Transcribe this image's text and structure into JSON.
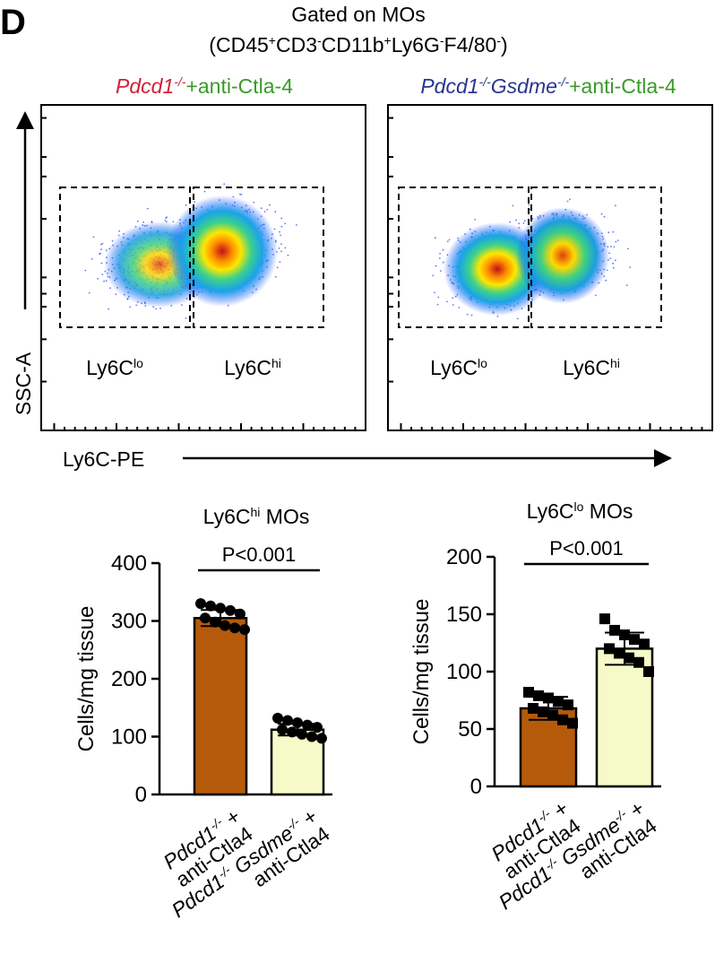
{
  "panel_letter": "D",
  "gating": {
    "title": "Gated on MOs",
    "markers": [
      {
        "name": "CD45",
        "sign": "+"
      },
      {
        "name": "CD3",
        "sign": "-"
      },
      {
        "name": "CD11b",
        "sign": "+"
      },
      {
        "name": "Ly6G",
        "sign": "-"
      },
      {
        "name": "F4/80",
        "sign": "-"
      }
    ]
  },
  "flow_panels": [
    {
      "header": [
        {
          "text": "Pdcd1",
          "italic": true,
          "color": "#d0203a"
        },
        {
          "text": "-/-",
          "sup": true,
          "italic": true,
          "color": "#d0203a"
        },
        {
          "text": "+anti-Ctla-4",
          "italic": false,
          "color": "#3a9a2a"
        }
      ],
      "gate_left": "Ly6C",
      "gate_left_sup": "lo",
      "gate_right": "Ly6C",
      "gate_right_sup": "hi"
    },
    {
      "header": [
        {
          "text": "Pdcd1",
          "italic": true,
          "color": "#2a3590"
        },
        {
          "text": "-/-",
          "sup": true,
          "italic": true,
          "color": "#2a3590"
        },
        {
          "text": "Gsdme",
          "italic": true,
          "color": "#2a3590"
        },
        {
          "text": "-/-",
          "sup": true,
          "italic": true,
          "color": "#2a3590"
        },
        {
          "text": "+anti-Ctla-4",
          "italic": false,
          "color": "#3a9a2a"
        }
      ],
      "gate_left": "Ly6C",
      "gate_left_sup": "lo",
      "gate_right": "Ly6C",
      "gate_right_sup": "hi"
    }
  ],
  "flow_axes": {
    "y_label": "SSC-A",
    "x_label": "Ly6C-PE"
  },
  "colors": {
    "bar_group1": "#b55a0b",
    "bar_group2": "#f6f9c8"
  },
  "chart_data": [
    {
      "type": "bar",
      "title": "Ly6C",
      "title_sup": "hi",
      "title_suffix": " MOs",
      "ylabel": "Cells/mg tissue",
      "ylim": [
        0,
        400
      ],
      "yticks": [
        0,
        100,
        200,
        300,
        400
      ],
      "pvalue": "P<0.001",
      "marker": "circle",
      "categories": [
        {
          "line1": [
            {
              "t": "Pdcd1",
              "i": true
            },
            {
              "t": "-/-",
              "sup": true
            },
            {
              "t": " +"
            }
          ],
          "line2": [
            {
              "t": "anti-Ctla4"
            }
          ]
        },
        {
          "line1": [
            {
              "t": "Pdcd1",
              "i": true
            },
            {
              "t": "-/-",
              "sup": true
            },
            {
              "t": " Gsdme",
              "i": true
            },
            {
              "t": "-/-",
              "sup": true
            },
            {
              "t": " +"
            }
          ],
          "line2": [
            {
              "t": "anti-Ctla4"
            }
          ]
        }
      ],
      "values": [
        305,
        112
      ],
      "errors": [
        14,
        10
      ],
      "points": [
        [
          330,
          326,
          322,
          318,
          312,
          305,
          298,
          292,
          288,
          285
        ],
        [
          132,
          128,
          124,
          120,
          116,
          112,
          108,
          104,
          100,
          97
        ]
      ]
    },
    {
      "type": "bar",
      "title": "Ly6C",
      "title_sup": "lo",
      "title_suffix": " MOs",
      "ylabel": "Cells/mg tissue",
      "ylim": [
        0,
        200
      ],
      "yticks": [
        0,
        50,
        100,
        150,
        200
      ],
      "pvalue": "P<0.001",
      "marker": "square",
      "categories": [
        {
          "line1": [
            {
              "t": "Pdcd1",
              "i": true
            },
            {
              "t": "-/-",
              "sup": true
            },
            {
              "t": " +"
            }
          ],
          "line2": [
            {
              "t": "anti-Ctla4"
            }
          ]
        },
        {
          "line1": [
            {
              "t": "Pdcd1",
              "i": true
            },
            {
              "t": "-/-",
              "sup": true
            },
            {
              "t": " Gsdme",
              "i": true
            },
            {
              "t": "-/-",
              "sup": true
            },
            {
              "t": " +"
            }
          ],
          "line2": [
            {
              "t": "anti-Ctla4"
            }
          ]
        }
      ],
      "values": [
        68,
        120
      ],
      "errors": [
        10,
        14
      ],
      "points": [
        [
          82,
          79,
          77,
          74,
          71,
          68,
          65,
          62,
          58,
          55
        ],
        [
          146,
          136,
          132,
          128,
          124,
          120,
          116,
          112,
          108,
          100
        ]
      ]
    }
  ]
}
